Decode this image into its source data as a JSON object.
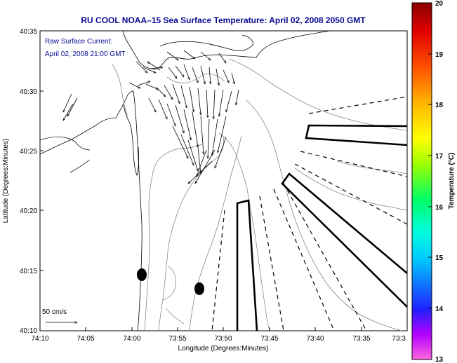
{
  "title": "RU COOL  NOAA–15  Sea Surface Temperature:  April 02, 2008 2050 GMT",
  "current_label_line1": "Raw Surface Current:",
  "current_label_line2": "April 02, 2008 21:00 GMT",
  "scale_label": "50 cm/s",
  "colorbar": {
    "label": "Temperature (°C)",
    "ticks": [
      "20",
      "19",
      "18",
      "17",
      "16",
      "15",
      "14",
      "13"
    ]
  },
  "map": {
    "xlabel": "Longitude (Degrees:Minutes)",
    "ylabel": "Latitude (Degrees:Minutes)",
    "lon_ticks": [
      "74:10",
      "74:05",
      "74:00",
      "73:55",
      "73:50",
      "73:45",
      "73:40",
      "73:35",
      "73:3"
    ],
    "lat_ticks": [
      "40:35",
      "40:30",
      "40:25",
      "40:20",
      "40:15",
      "40:10"
    ]
  }
}
